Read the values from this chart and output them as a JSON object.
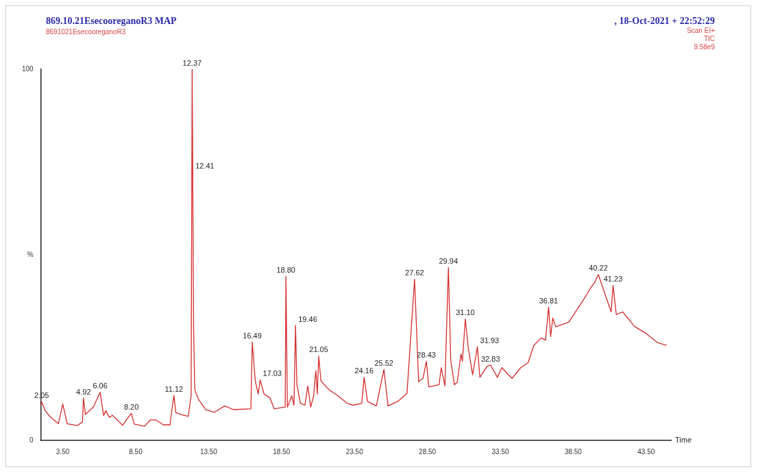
{
  "chart_data": {
    "type": "line",
    "title": "869.10.21EsecooreganoR3 MAP",
    "subtitle": "8691021EsecooreganoR3",
    "xlabel": "Time",
    "annotations": [
      ", 18-Oct-2021 + 22:52:29",
      "Scan EI+",
      "TIC",
      "9.58e9",
      {
        "text": "2.05",
        "x": 2.05,
        "y": 10.4
      },
      {
        "text": "4.92",
        "x": 4.92,
        "y": 11.4
      },
      {
        "text": "6.06",
        "x": 6.06,
        "y": 13.0
      },
      {
        "text": "8.20",
        "x": 8.2,
        "y": 7.3
      },
      {
        "text": "11.12",
        "x": 11.12,
        "y": 12.1
      },
      {
        "text": "12.37",
        "x": 12.37,
        "y": 100
      },
      {
        "text": "12.41",
        "x": 12.41,
        "y": 72.3
      },
      {
        "text": "16.49",
        "x": 16.49,
        "y": 26.5
      },
      {
        "text": "17.03",
        "x": 17.03,
        "y": 16.3
      },
      {
        "text": "18.80",
        "x": 18.8,
        "y": 44.2
      },
      {
        "text": "19.46",
        "x": 19.46,
        "y": 31.0
      },
      {
        "text": "21.05",
        "x": 21.05,
        "y": 22.7
      },
      {
        "text": "24.16",
        "x": 24.16,
        "y": 17.0
      },
      {
        "text": "25.52",
        "x": 25.52,
        "y": 19.1
      },
      {
        "text": "27.62",
        "x": 27.62,
        "y": 43.4
      },
      {
        "text": "28.43",
        "x": 28.43,
        "y": 21.3
      },
      {
        "text": "29.94",
        "x": 29.94,
        "y": 46.6
      },
      {
        "text": "31.10",
        "x": 31.1,
        "y": 32.7
      },
      {
        "text": "31.93",
        "x": 31.93,
        "y": 25.2
      },
      {
        "text": "32.83",
        "x": 32.83,
        "y": 20.3
      },
      {
        "text": "36.81",
        "x": 36.81,
        "y": 35.9
      },
      {
        "text": "40.22",
        "x": 40.22,
        "y": 44.7
      },
      {
        "text": "41.23",
        "x": 41.23,
        "y": 41.8
      }
    ],
    "x": [
      2.0,
      2.05,
      2.3,
      2.6,
      3.2,
      3.5,
      3.8,
      4.5,
      4.85,
      4.92,
      5.05,
      5.6,
      6.06,
      6.3,
      6.45,
      6.7,
      6.9,
      7.6,
      8.2,
      8.4,
      9.1,
      9.5,
      9.9,
      10.4,
      10.85,
      10.95,
      11.12,
      11.25,
      11.6,
      12.1,
      12.3,
      12.37,
      12.41,
      12.47,
      12.55,
      12.8,
      13.3,
      13.9,
      14.6,
      15.2,
      16.4,
      16.49,
      16.7,
      16.9,
      17.03,
      17.3,
      17.7,
      18.0,
      18.75,
      18.8,
      18.9,
      19.2,
      19.35,
      19.46,
      19.55,
      19.8,
      20.1,
      20.3,
      20.5,
      20.7,
      20.85,
      20.95,
      21.05,
      21.2,
      21.8,
      22.2,
      23.0,
      23.4,
      24.0,
      24.16,
      24.4,
      25.0,
      25.52,
      25.8,
      26.5,
      27.1,
      27.62,
      27.9,
      28.2,
      28.43,
      28.6,
      29.3,
      29.45,
      29.7,
      29.94,
      30.1,
      30.35,
      30.55,
      30.8,
      30.9,
      31.1,
      31.3,
      31.6,
      31.93,
      32.1,
      32.6,
      32.83,
      33.3,
      33.6,
      34.3,
      34.9,
      35.4,
      35.8,
      36.3,
      36.6,
      36.81,
      36.95,
      37.1,
      37.3,
      38.2,
      39.2,
      39.7,
      39.95,
      40.22,
      41.1,
      41.23,
      41.45,
      41.9,
      42.7,
      43.5,
      44.3,
      44.9
    ],
    "series": [
      {
        "color": "#d42a2a",
        "values": [
          9.5,
          10.4,
          8,
          6.5,
          4.5,
          9.8,
          4.5,
          4.0,
          5.0,
          11.4,
          7.0,
          9,
          13.0,
          6.7,
          8.0,
          6.2,
          6.8,
          4.1,
          7.3,
          4.4,
          3.8,
          5.5,
          5.5,
          4.2,
          4.2,
          7.3,
          12.1,
          7.5,
          7,
          6.5,
          12,
          100,
          72.3,
          30,
          13.7,
          11.1,
          8.3,
          7.6,
          9.3,
          8.3,
          8.5,
          26.5,
          16,
          12.5,
          16.3,
          12.5,
          11.5,
          8.5,
          9.0,
          44.2,
          9.0,
          12,
          9.5,
          31.0,
          15,
          10,
          9.5,
          14.7,
          9,
          12,
          18.8,
          12.5,
          22.7,
          16,
          13.5,
          12.5,
          10,
          9.5,
          10,
          17.0,
          10.5,
          9.3,
          19.1,
          9.3,
          10.6,
          12.7,
          43.4,
          15.8,
          16.8,
          21.3,
          14.4,
          15,
          19.6,
          14.7,
          46.6,
          21.7,
          15,
          15.7,
          23.3,
          21.3,
          32.7,
          25,
          17.7,
          25.2,
          17,
          20,
          20.3,
          17,
          19.6,
          16.7,
          19.6,
          20.9,
          25.6,
          27.6,
          27,
          35.9,
          28,
          33,
          30.6,
          31.9,
          37.9,
          41.1,
          42.4,
          44.7,
          34.6,
          41.8,
          33.9,
          34.6,
          30.7,
          28.8,
          26.3,
          25.6
        ]
      }
    ],
    "xlim": [
      2.0,
      45.2
    ],
    "xticks": [
      {
        "value": 3.5,
        "label": "3.50"
      },
      {
        "value": 8.5,
        "label": "8.50"
      },
      {
        "value": 13.5,
        "label": "13.50"
      },
      {
        "value": 18.5,
        "label": "18.50"
      },
      {
        "value": 23.5,
        "label": "23.50"
      },
      {
        "value": 28.5,
        "label": "28.50"
      },
      {
        "value": 33.5,
        "label": "33.50"
      },
      {
        "value": 38.5,
        "label": "38.50"
      },
      {
        "value": 43.5,
        "label": "43.50"
      }
    ],
    "ylim": [
      0,
      100
    ],
    "yticks": [
      0,
      {
        "value": 50,
        "label": "%"
      },
      100
    ],
    "grid": false,
    "legend": false,
    "marker": "none",
    "line_style": "solid"
  }
}
